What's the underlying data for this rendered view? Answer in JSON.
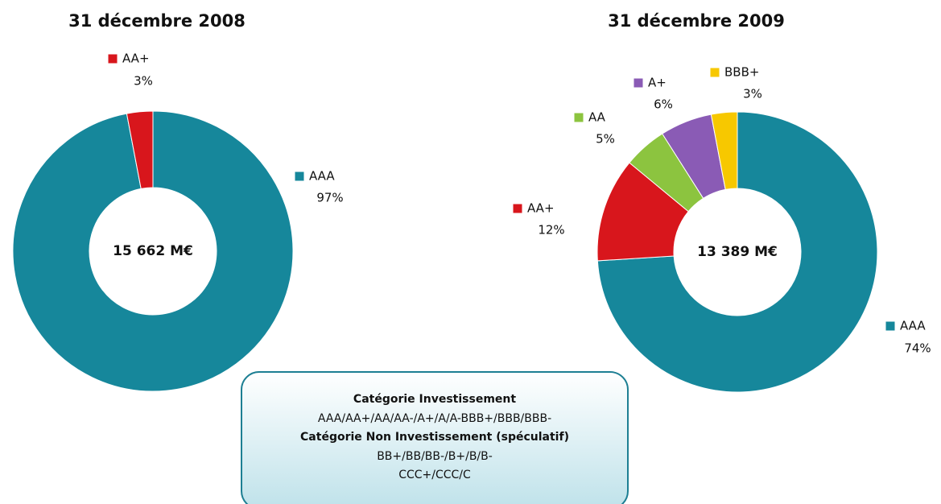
{
  "chart_data": [
    {
      "type": "donut",
      "title": "31 décembre 2008",
      "center_label": "15 662 M€",
      "categories": [
        "AAA",
        "AA+"
      ],
      "values": [
        97,
        3
      ],
      "value_labels": [
        "97%",
        "3%"
      ],
      "colors": [
        "#16879b",
        "#d8161c"
      ]
    },
    {
      "type": "donut",
      "title": "31 décembre 2009",
      "center_label": "13 389 M€",
      "categories": [
        "AAA",
        "AA+",
        "AA",
        "A+",
        "BBB+"
      ],
      "values": [
        74,
        12,
        5,
        6,
        3
      ],
      "value_labels": [
        "74%",
        "12%",
        "5%",
        "6%",
        "3%"
      ],
      "colors": [
        "#16879b",
        "#d8161c",
        "#8cc43f",
        "#8a5bb5",
        "#f7c800"
      ]
    }
  ],
  "info_box": {
    "lines": [
      {
        "text": "Catégorie Investissement",
        "bold": true
      },
      {
        "text": "AAA/AA+/AA/AA-/A+/A/A-BBB+/BBB/BBB-",
        "bold": false
      },
      {
        "text": "Catégorie Non Investissement (spéculatif)",
        "bold": true
      },
      {
        "text": "BB+/BB/BB-/B+/B/B-",
        "bold": false
      },
      {
        "text": "CCC+/CCC/C",
        "bold": false
      }
    ]
  }
}
